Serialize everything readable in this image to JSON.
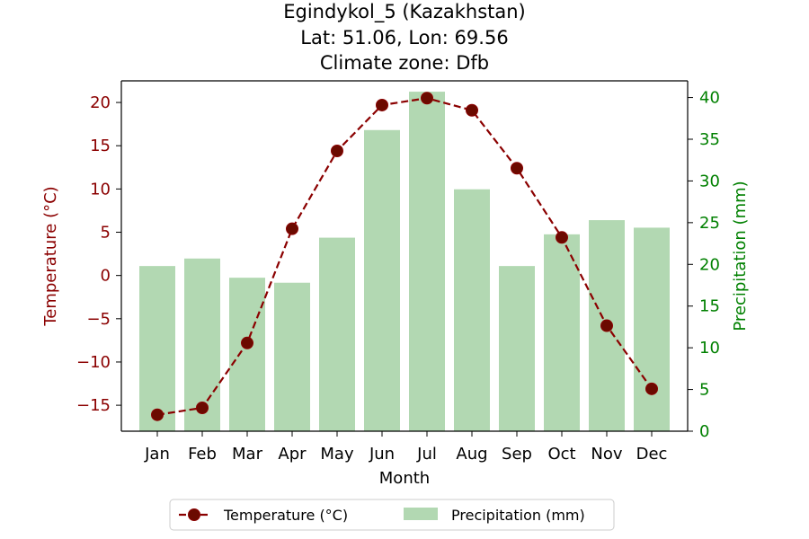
{
  "chart_data": {
    "type": "bar+line",
    "title_lines": [
      "Egindykol_5 (Kazakhstan)",
      "Lat: 51.06, Lon: 69.56",
      "Climate zone: Dfb"
    ],
    "xlabel": "Month",
    "categories": [
      "Jan",
      "Feb",
      "Mar",
      "Apr",
      "May",
      "Jun",
      "Jul",
      "Aug",
      "Sep",
      "Oct",
      "Nov",
      "Dec"
    ],
    "temperature": {
      "name": "Temperature (°C)",
      "axis_label": "Temperature (°C)",
      "values": [
        -16.1,
        -15.3,
        -7.8,
        5.4,
        14.4,
        19.7,
        20.5,
        19.1,
        12.4,
        4.4,
        -5.8,
        -13.1
      ],
      "ylim": [
        -18,
        22.5
      ],
      "ticks": [
        20,
        15,
        10,
        5,
        0,
        -5,
        -10,
        -15
      ],
      "tick_labels": [
        "20",
        "15",
        "10",
        "5",
        "0",
        "−5",
        "−10",
        "−15"
      ],
      "color": "#8b0000",
      "line_style": "dashed",
      "marker": "circle",
      "axis_color": "#8b0000"
    },
    "precipitation": {
      "name": "Precipitation (mm)",
      "axis_label": "Precipitation (mm)",
      "values": [
        19.8,
        20.7,
        18.4,
        17.8,
        23.2,
        36.1,
        40.7,
        29.0,
        19.8,
        23.6,
        25.3,
        24.4
      ],
      "ylim": [
        0,
        42
      ],
      "ticks": [
        0,
        5,
        10,
        15,
        20,
        25,
        30,
        35,
        40
      ],
      "tick_labels": [
        "0",
        "5",
        "10",
        "15",
        "20",
        "25",
        "30",
        "35",
        "40"
      ],
      "color": "#b2d8b2",
      "axis_color": "#008000"
    },
    "legend": {
      "placement": "bottom-center",
      "entries": [
        "Temperature (°C)",
        "Precipitation (mm)"
      ]
    },
    "grid": false
  }
}
